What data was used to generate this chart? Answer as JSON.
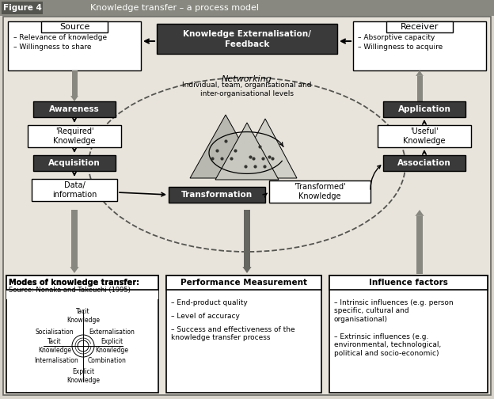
{
  "bg_color": "#d8d4cc",
  "inner_bg": "#e8e4dc",
  "title_bar_bg": "#888880",
  "title_fig4_bg": "#555550",
  "source_title": "Source",
  "source_bullets": [
    "Relevance of knowledge",
    "Willingness to share"
  ],
  "receiver_title": "Receiver",
  "receiver_bullets": [
    "Absorptive capacity",
    "Willingness to acquire"
  ],
  "kef_line1": "Knowledge Externalisation/",
  "kef_line2": "Feedback",
  "networking_title": "Networking",
  "networking_sub": "Individual, team, organisational and\ninter-organisational levels",
  "awareness_label": "Awareness",
  "required_label": "'Required'\nKnowledge",
  "acquisition_label": "Acquisition",
  "data_info_label": "Data/\ninformation",
  "transformation_label": "Transformation",
  "transformed_label": "'Transformed'\nKnowledge",
  "application_label": "Application",
  "useful_label": "'Useful'\nKnowledge",
  "association_label": "Association",
  "modes_title": "Modes of knowledge transfer:",
  "modes_sub": "Source: Nonaka and Takeuchi (1995)",
  "perf_title": "Performance Measurement",
  "perf_bullets": [
    "End-product quality",
    "Level of accuracy",
    "Success and effectiveness of the\nknowledge transfer process"
  ],
  "infl_title": "Influence factors",
  "infl_bullets": [
    "Intrinsic influences (e.g. person\nspecific, cultural and\norganisational)",
    "Extrinsic influences (e.g.\nenvironmental, technological,\npolitical and socio-economic)"
  ],
  "dark_box_color": "#3a3a3a",
  "arrow_gray": "#888880"
}
